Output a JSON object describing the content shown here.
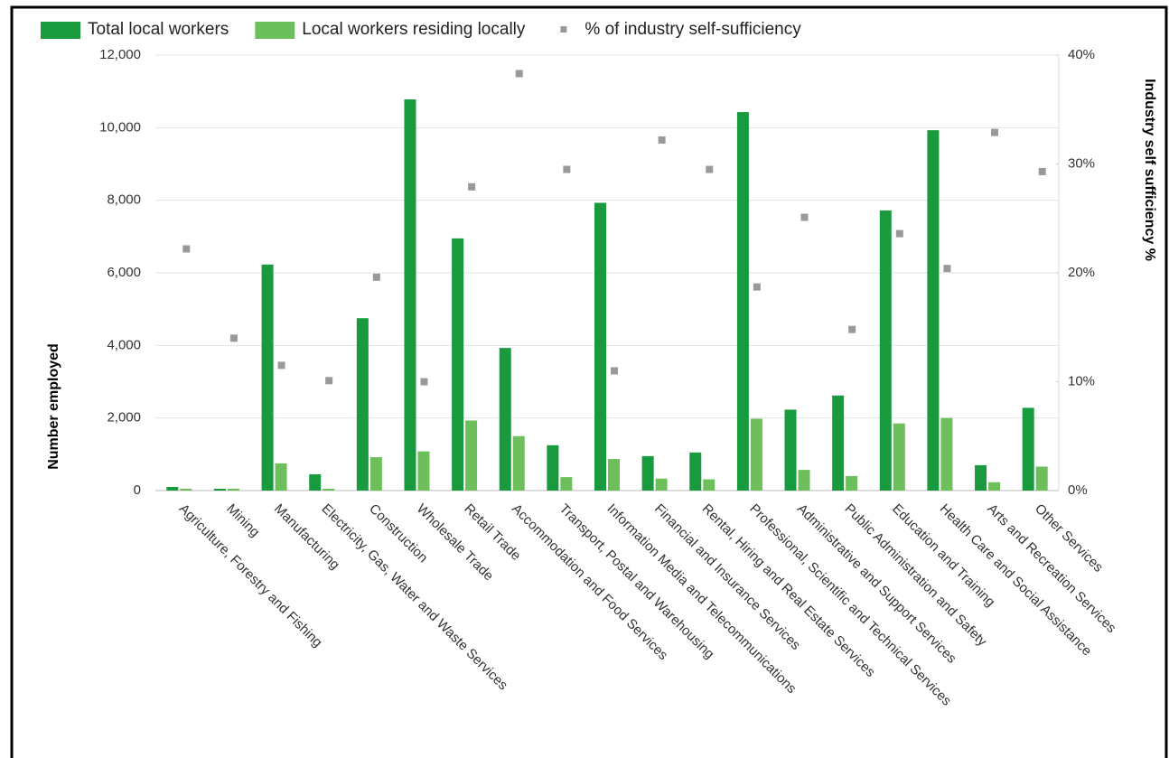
{
  "chart_data": {
    "type": "bar",
    "categories": [
      "Agriculture, Forestry and Fishing",
      "Mining",
      "Manufacturing",
      "Electricity, Gas, Water and Waste Services",
      "Construction",
      "Wholesale Trade",
      "Retail Trade",
      "Accommodation and Food Services",
      "Transport, Postal and Warehousing",
      "Information Media and Telecommunications",
      "Financial and Insurance Services",
      "Rental, Hiring and Real Estate Services",
      "Professional, Scientific and Technical Services",
      "Administrative and Support Services",
      "Public Administration and Safety",
      "Education and Training",
      "Health Care and Social Assistance",
      "Arts and Recreation Services",
      "Other Services"
    ],
    "series": [
      {
        "name": "Total local workers",
        "color": "#1a9a3e",
        "values": [
          100,
          50,
          6230,
          450,
          4750,
          10780,
          6950,
          3930,
          1250,
          7930,
          950,
          1050,
          10430,
          2230,
          2620,
          7720,
          9930,
          700,
          2280
        ]
      },
      {
        "name": "Local workers residing locally",
        "color": "#6cbf5a",
        "values": [
          50,
          50,
          750,
          50,
          920,
          1080,
          1930,
          1500,
          370,
          870,
          330,
          310,
          1980,
          570,
          400,
          1850,
          2000,
          230,
          660
        ]
      },
      {
        "name": "% of industry self-sufficiency",
        "color": "#999999",
        "axis": "y2",
        "values": [
          22.2,
          14.0,
          11.5,
          10.1,
          19.6,
          10.0,
          27.9,
          38.3,
          29.5,
          11.0,
          32.2,
          29.5,
          18.7,
          25.1,
          14.8,
          23.6,
          20.4,
          32.9,
          29.3
        ]
      }
    ],
    "y_label": "Number employed",
    "y2_label": "Industry self sufficiency %",
    "ylim": [
      0,
      12000
    ],
    "yticks": [
      0,
      {
        "value": 2000,
        "label": "2,000"
      },
      {
        "value": 4000,
        "label": "4,000"
      },
      {
        "value": 6000,
        "label": "6,000"
      },
      {
        "value": 8000,
        "label": "8,000"
      },
      {
        "value": 10000,
        "label": "10,000"
      },
      {
        "value": 12000,
        "label": "12,000"
      }
    ],
    "y2lim": [
      0,
      40
    ],
    "y2ticks": [
      {
        "value": 0,
        "label": "0%"
      },
      {
        "value": 10,
        "label": "10%"
      },
      {
        "value": 20,
        "label": "20%"
      },
      {
        "value": 30,
        "label": "30%"
      },
      {
        "value": 40,
        "label": "40%"
      }
    ],
    "grid": true
  }
}
